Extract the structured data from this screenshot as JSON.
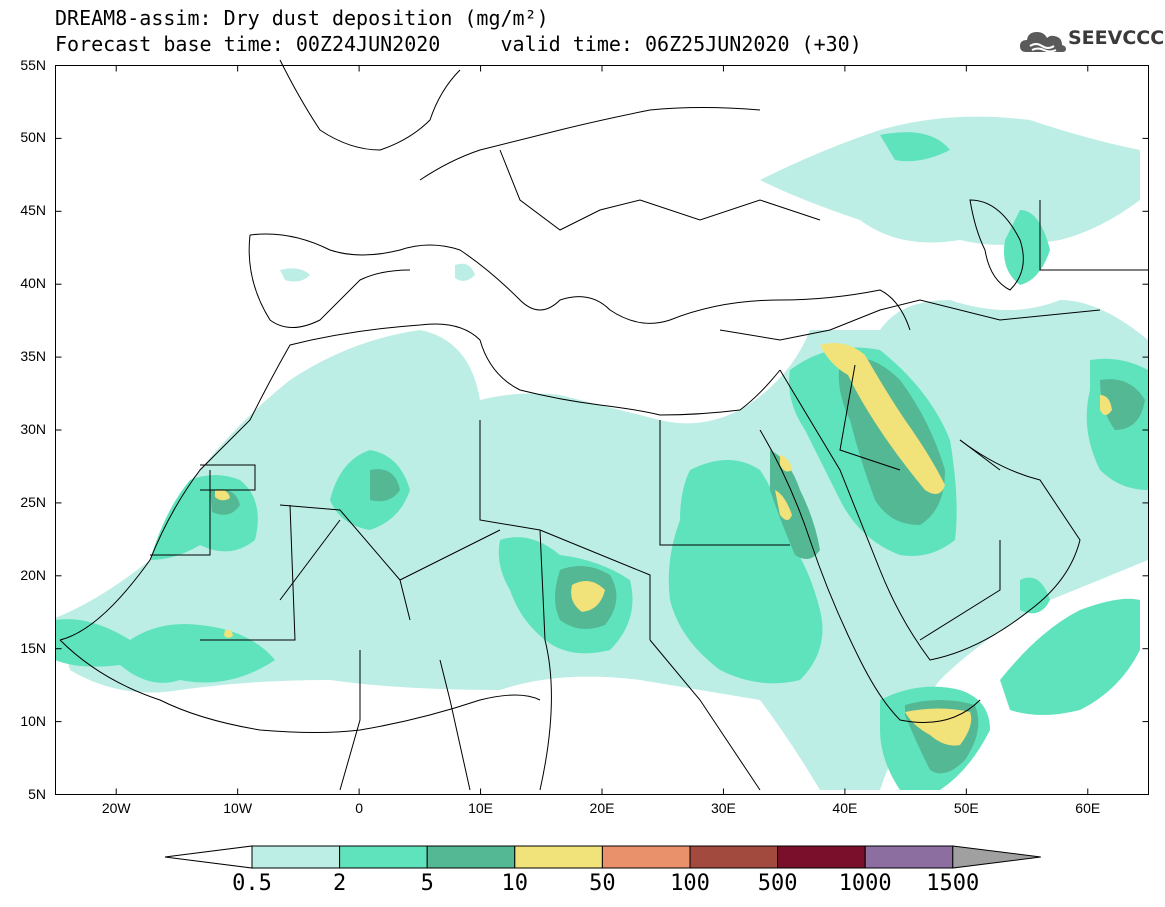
{
  "header": {
    "title_line1": "DREAM8-assim: Dry dust deposition (mg/m²)",
    "title_line2": "Forecast base time: 00Z24JUN2020     valid time: 06Z25JUN2020 (+30)"
  },
  "logo": {
    "text": "SEEVCCC",
    "icon": "cloud-icon"
  },
  "map": {
    "lon_range": [
      -25,
      65
    ],
    "lat_range": [
      5,
      55
    ],
    "lat_labels": [
      "55N",
      "50N",
      "45N",
      "40N",
      "35N",
      "30N",
      "25N",
      "20N",
      "15N",
      "10N",
      "5N"
    ],
    "lon_labels": [
      "20W",
      "10W",
      "0",
      "10E",
      "20E",
      "30E",
      "40E",
      "50E",
      "60E"
    ],
    "land_color": "#ffffff",
    "border_color": "#000000"
  },
  "colorbar": {
    "labels": [
      "0.5",
      "2",
      "5",
      "10",
      "50",
      "100",
      "500",
      "1000",
      "1500"
    ],
    "colors": [
      "#bdeee6",
      "#5fe3bc",
      "#55b894",
      "#f2e27a",
      "#e8916a",
      "#a34a3e",
      "#7a0f2b",
      "#8c6fa0"
    ],
    "under_color": "#ffffff",
    "over_color": "#a0a0a0"
  }
}
